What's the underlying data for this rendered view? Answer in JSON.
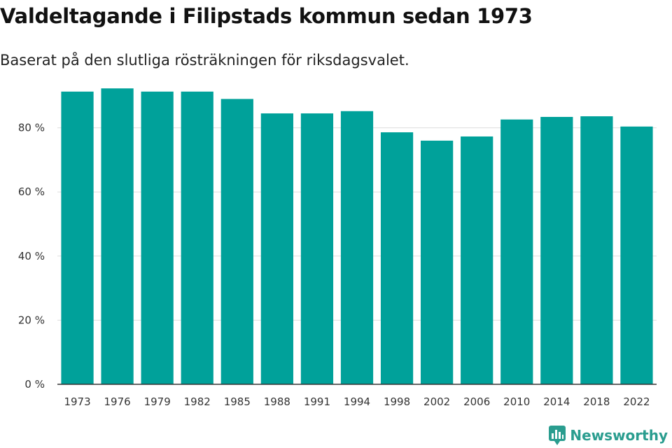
{
  "header": {
    "title": "Valdeltagande i Filipstads kommun sedan 1973",
    "subtitle": "Baserat på den slutliga rösträkningen för riksdagsvalet."
  },
  "brand": {
    "name": "Newsworthy",
    "icon": "bar-chart-logo-icon",
    "color": "#2a9d8f"
  },
  "colors": {
    "bar": "#00a19a",
    "grid": "#dddddd",
    "axis": "#333333"
  },
  "chart_data": {
    "type": "bar",
    "categories": [
      "1973",
      "1976",
      "1979",
      "1982",
      "1985",
      "1988",
      "1991",
      "1994",
      "1998",
      "2002",
      "2006",
      "2010",
      "2014",
      "2018",
      "2022"
    ],
    "values": [
      91.3,
      92.3,
      91.3,
      91.3,
      89.0,
      84.5,
      84.5,
      85.2,
      78.6,
      76.0,
      77.3,
      82.6,
      83.4,
      83.6,
      80.4
    ],
    "ylim": [
      0,
      100
    ],
    "yticks": [
      0,
      20,
      40,
      60,
      80
    ],
    "yunit": " %",
    "grid": true,
    "legend": false
  }
}
